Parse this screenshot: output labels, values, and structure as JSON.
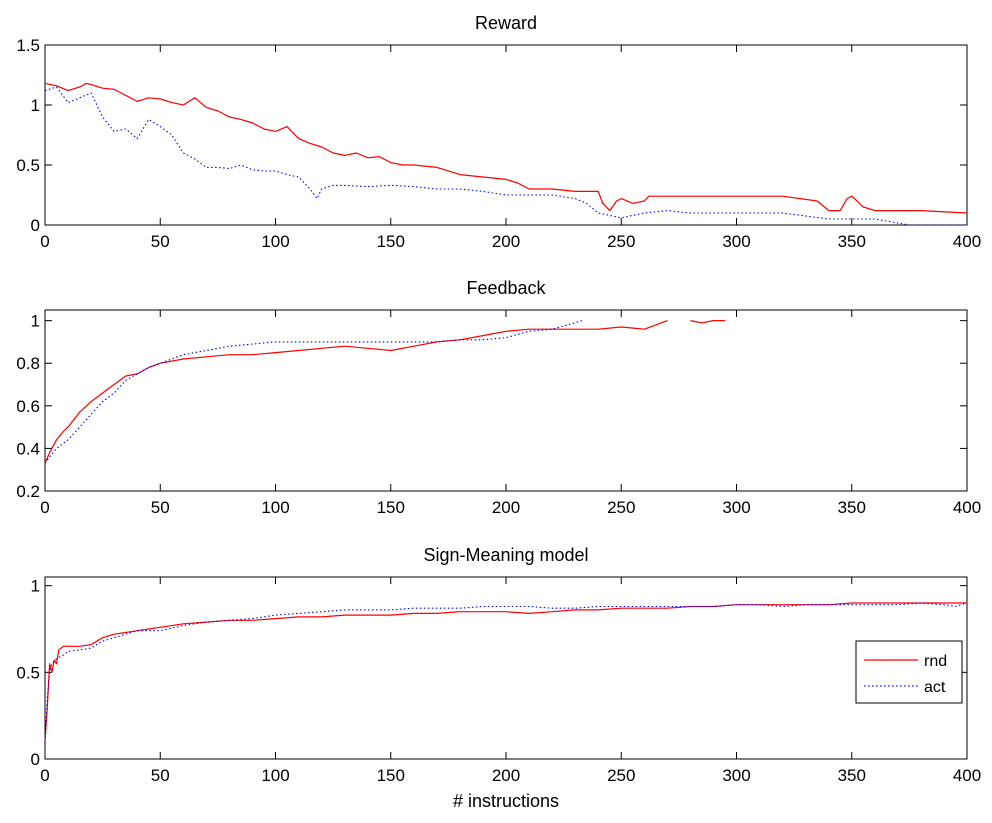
{
  "colors": {
    "rnd": "#ff0000",
    "act": "#0000ff",
    "axes": "#000000",
    "background": "#ffffff"
  },
  "chart_data": [
    {
      "type": "line",
      "title": "Reward",
      "xlabel": "",
      "ylabel": "",
      "xlim": [
        0,
        400
      ],
      "ylim": [
        0,
        1.5
      ],
      "xticks": [
        0,
        50,
        100,
        150,
        200,
        250,
        300,
        350,
        400
      ],
      "xtick_labels": [
        "0",
        "50",
        "100",
        "150",
        "200",
        "250",
        "300",
        "350",
        "400"
      ],
      "yticks": [
        0,
        0.5,
        1,
        1.5
      ],
      "ytick_labels": [
        "0",
        "0.5",
        "1",
        "1.5"
      ],
      "grid": false,
      "series": [
        {
          "name": "rnd",
          "style": "solid",
          "x": [
            0,
            5,
            10,
            15,
            18,
            20,
            25,
            30,
            35,
            40,
            45,
            50,
            55,
            60,
            65,
            70,
            75,
            80,
            85,
            90,
            95,
            100,
            105,
            110,
            115,
            120,
            125,
            130,
            135,
            140,
            145,
            150,
            155,
            160,
            170,
            180,
            190,
            200,
            205,
            210,
            220,
            230,
            240,
            242,
            245,
            248,
            250,
            255,
            260,
            262,
            270,
            280,
            300,
            320,
            335,
            340,
            345,
            348,
            350,
            355,
            360,
            380,
            400
          ],
          "y": [
            1.18,
            1.16,
            1.12,
            1.15,
            1.18,
            1.17,
            1.14,
            1.13,
            1.08,
            1.03,
            1.06,
            1.05,
            1.02,
            1.0,
            1.06,
            0.98,
            0.95,
            0.9,
            0.88,
            0.85,
            0.8,
            0.78,
            0.82,
            0.72,
            0.68,
            0.65,
            0.6,
            0.58,
            0.6,
            0.56,
            0.57,
            0.52,
            0.5,
            0.5,
            0.48,
            0.42,
            0.4,
            0.38,
            0.35,
            0.3,
            0.3,
            0.28,
            0.28,
            0.18,
            0.12,
            0.2,
            0.22,
            0.18,
            0.2,
            0.24,
            0.24,
            0.24,
            0.24,
            0.24,
            0.2,
            0.12,
            0.12,
            0.22,
            0.24,
            0.15,
            0.12,
            0.12,
            0.1
          ]
        },
        {
          "name": "act",
          "style": "dotted",
          "x": [
            0,
            5,
            10,
            15,
            20,
            25,
            30,
            35,
            40,
            45,
            50,
            55,
            60,
            65,
            70,
            75,
            80,
            85,
            90,
            95,
            100,
            105,
            110,
            115,
            118,
            120,
            125,
            130,
            140,
            150,
            160,
            170,
            180,
            190,
            200,
            210,
            220,
            230,
            235,
            240,
            245,
            250,
            260,
            270,
            280,
            300,
            320,
            340,
            360,
            375,
            380,
            390,
            400
          ],
          "y": [
            1.12,
            1.15,
            1.02,
            1.06,
            1.1,
            0.9,
            0.78,
            0.8,
            0.72,
            0.88,
            0.82,
            0.75,
            0.6,
            0.55,
            0.48,
            0.48,
            0.47,
            0.5,
            0.46,
            0.45,
            0.45,
            0.42,
            0.4,
            0.3,
            0.22,
            0.3,
            0.33,
            0.33,
            0.32,
            0.33,
            0.32,
            0.3,
            0.3,
            0.28,
            0.25,
            0.25,
            0.25,
            0.22,
            0.18,
            0.1,
            0.08,
            0.06,
            0.1,
            0.12,
            0.1,
            0.1,
            0.1,
            0.05,
            0.05,
            0.0,
            0.0,
            0.0,
            0.0
          ]
        }
      ]
    },
    {
      "type": "line",
      "title": "Feedback",
      "xlabel": "",
      "ylabel": "",
      "xlim": [
        0,
        400
      ],
      "ylim": [
        0.2,
        1.05
      ],
      "xticks": [
        0,
        50,
        100,
        150,
        200,
        250,
        300,
        350,
        400
      ],
      "xtick_labels": [
        "0",
        "50",
        "100",
        "150",
        "200",
        "250",
        "300",
        "350",
        "400"
      ],
      "yticks": [
        0.2,
        0.4,
        0.6,
        0.8,
        1
      ],
      "ytick_labels": [
        "0.2",
        "0.4",
        "0.6",
        "0.8",
        "1"
      ],
      "grid": false,
      "series": [
        {
          "name": "rnd",
          "style": "solid",
          "x": [
            0,
            2,
            5,
            8,
            10,
            15,
            20,
            25,
            30,
            35,
            40,
            45,
            50,
            60,
            70,
            80,
            90,
            100,
            110,
            120,
            130,
            140,
            150,
            160,
            170,
            180,
            190,
            200,
            210,
            220,
            230,
            240,
            250,
            260,
            265,
            270,
            null,
            280,
            285,
            290,
            295
          ],
          "y": [
            0.33,
            0.38,
            0.44,
            0.48,
            0.5,
            0.57,
            0.62,
            0.66,
            0.7,
            0.74,
            0.75,
            0.78,
            0.8,
            0.82,
            0.83,
            0.84,
            0.84,
            0.85,
            0.86,
            0.87,
            0.88,
            0.87,
            0.86,
            0.88,
            0.9,
            0.91,
            0.93,
            0.95,
            0.96,
            0.96,
            0.96,
            0.96,
            0.97,
            0.96,
            0.98,
            1.0,
            null,
            1.0,
            0.99,
            1.0,
            1.0
          ]
        },
        {
          "name": "act",
          "style": "dotted",
          "x": [
            0,
            2,
            5,
            10,
            15,
            20,
            25,
            30,
            35,
            40,
            45,
            50,
            60,
            70,
            80,
            90,
            100,
            110,
            120,
            130,
            140,
            150,
            160,
            170,
            180,
            190,
            200,
            210,
            220,
            230,
            233
          ],
          "y": [
            0.33,
            0.36,
            0.4,
            0.44,
            0.5,
            0.56,
            0.62,
            0.66,
            0.72,
            0.75,
            0.78,
            0.8,
            0.84,
            0.86,
            0.88,
            0.89,
            0.9,
            0.9,
            0.9,
            0.9,
            0.9,
            0.9,
            0.9,
            0.9,
            0.91,
            0.91,
            0.92,
            0.95,
            0.96,
            0.99,
            1.0
          ]
        }
      ]
    },
    {
      "type": "line",
      "title": "Sign-Meaning model",
      "xlabel": "# instructions",
      "ylabel": "",
      "xlim": [
        0,
        400
      ],
      "ylim": [
        0,
        1.05
      ],
      "xticks": [
        0,
        50,
        100,
        150,
        200,
        250,
        300,
        350,
        400
      ],
      "xtick_labels": [
        "0",
        "50",
        "100",
        "150",
        "200",
        "250",
        "300",
        "350",
        "400"
      ],
      "yticks": [
        0,
        0.5,
        1
      ],
      "ytick_labels": [
        "0",
        "0.5",
        "1"
      ],
      "grid": false,
      "legend": {
        "placement": "right",
        "entries": [
          "rnd",
          "act"
        ]
      },
      "series": [
        {
          "name": "rnd",
          "style": "solid",
          "x": [
            0,
            1,
            2,
            3,
            4,
            5,
            6,
            8,
            10,
            15,
            20,
            25,
            30,
            35,
            40,
            45,
            50,
            60,
            70,
            80,
            90,
            100,
            110,
            120,
            130,
            140,
            150,
            160,
            170,
            180,
            190,
            200,
            210,
            220,
            230,
            240,
            250,
            260,
            270,
            280,
            290,
            300,
            310,
            320,
            330,
            340,
            350,
            360,
            370,
            380,
            390,
            400
          ],
          "y": [
            0.1,
            0.3,
            0.55,
            0.5,
            0.57,
            0.55,
            0.63,
            0.65,
            0.65,
            0.65,
            0.66,
            0.7,
            0.72,
            0.73,
            0.74,
            0.75,
            0.76,
            0.78,
            0.79,
            0.8,
            0.8,
            0.81,
            0.82,
            0.82,
            0.83,
            0.83,
            0.83,
            0.84,
            0.84,
            0.85,
            0.85,
            0.85,
            0.84,
            0.85,
            0.86,
            0.86,
            0.87,
            0.87,
            0.87,
            0.88,
            0.88,
            0.89,
            0.89,
            0.89,
            0.89,
            0.89,
            0.9,
            0.9,
            0.9,
            0.9,
            0.9,
            0.9
          ]
        },
        {
          "name": "act",
          "style": "dotted",
          "x": [
            0,
            1,
            2,
            3,
            5,
            8,
            10,
            15,
            20,
            25,
            30,
            35,
            40,
            50,
            60,
            70,
            80,
            90,
            100,
            110,
            120,
            130,
            140,
            150,
            160,
            170,
            180,
            190,
            200,
            210,
            220,
            230,
            240,
            250,
            260,
            270,
            280,
            290,
            300,
            310,
            320,
            330,
            340,
            350,
            360,
            370,
            380,
            390,
            395,
            400
          ],
          "y": [
            0.1,
            0.35,
            0.5,
            0.55,
            0.58,
            0.6,
            0.62,
            0.63,
            0.64,
            0.68,
            0.7,
            0.72,
            0.74,
            0.74,
            0.77,
            0.79,
            0.8,
            0.81,
            0.83,
            0.84,
            0.85,
            0.86,
            0.86,
            0.86,
            0.87,
            0.87,
            0.87,
            0.88,
            0.88,
            0.88,
            0.87,
            0.87,
            0.88,
            0.88,
            0.88,
            0.88,
            0.88,
            0.88,
            0.89,
            0.89,
            0.88,
            0.89,
            0.89,
            0.89,
            0.89,
            0.89,
            0.9,
            0.89,
            0.88,
            0.9
          ]
        }
      ]
    }
  ]
}
